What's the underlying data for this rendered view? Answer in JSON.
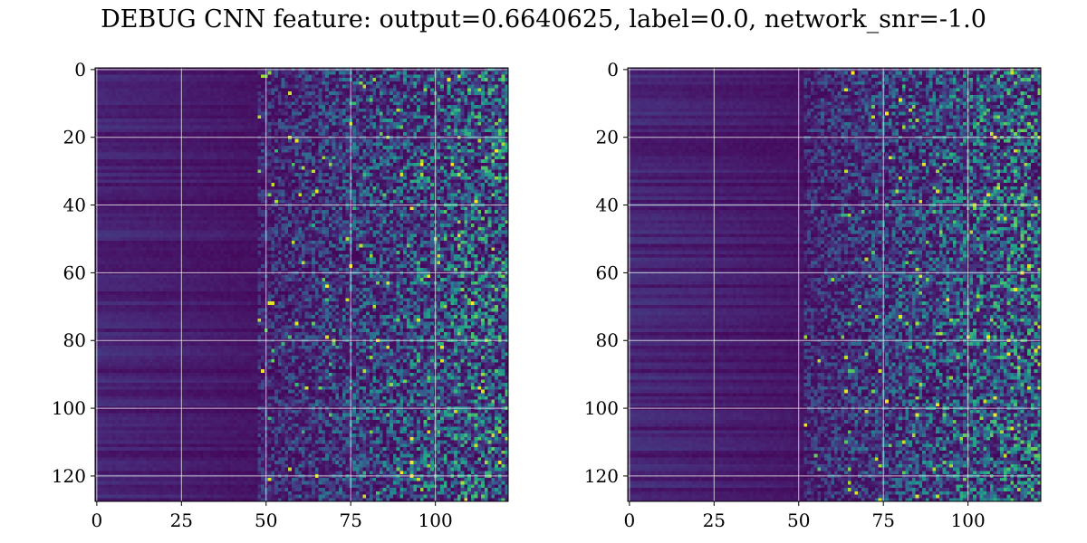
{
  "title": "DEBUG CNN feature: output=0.6640625, label=0.0, network_snr=-1.0",
  "chart_data": [
    {
      "type": "heatmap",
      "title": "",
      "xlabel": "",
      "ylabel": "",
      "rows": 128,
      "cols": 122,
      "xlim": [
        -0.5,
        121.5
      ],
      "ylim": [
        127.5,
        -0.5
      ],
      "x_ticks": [
        0,
        25,
        50,
        75,
        100
      ],
      "y_ticks": [
        0,
        20,
        40,
        60,
        80,
        100,
        120
      ],
      "grid": true,
      "colormap": "viridis",
      "description_pattern": "Low values (dark purple) on columns 0-45 with horizontal banding; increasingly noisy bright cells for columns 50-121"
    },
    {
      "type": "heatmap",
      "title": "",
      "xlabel": "",
      "ylabel": "",
      "rows": 128,
      "cols": 122,
      "xlim": [
        -0.5,
        121.5
      ],
      "ylim": [
        127.5,
        -0.5
      ],
      "x_ticks": [
        0,
        25,
        50,
        75,
        100
      ],
      "y_ticks": [
        0,
        20,
        40,
        60,
        80,
        100,
        120
      ],
      "grid": true,
      "colormap": "viridis",
      "description_pattern": "Low values (dark purple) on columns 0-50 with horizontal banding; increasingly noisy bright cells for columns 55-121"
    }
  ]
}
